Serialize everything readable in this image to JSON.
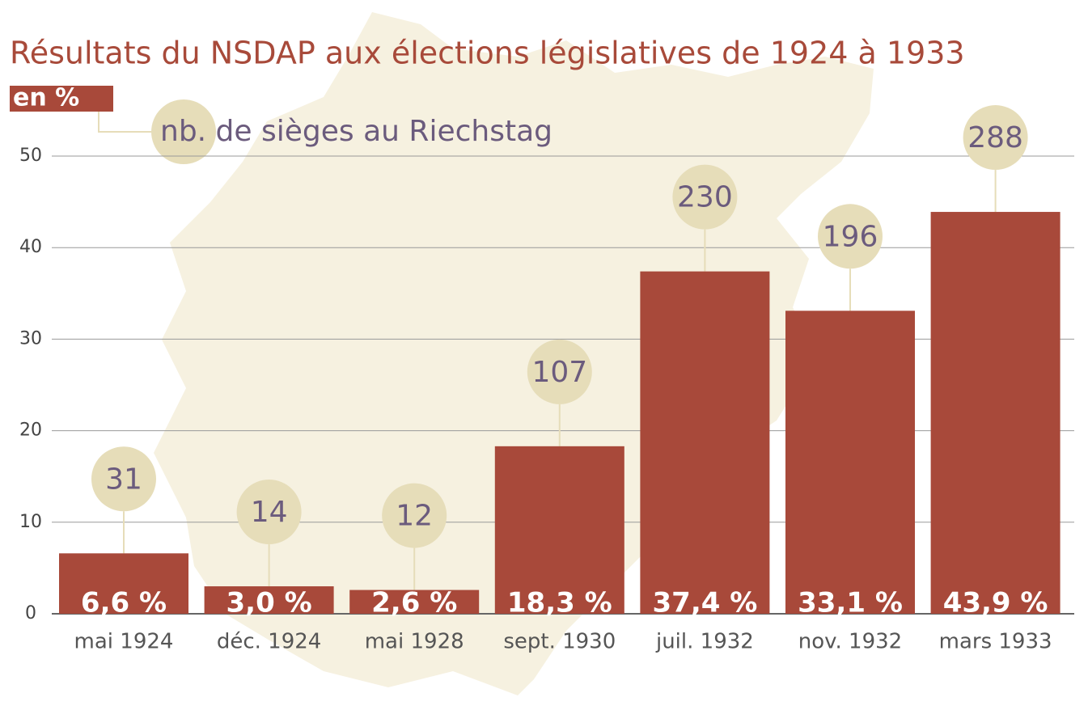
{
  "chart_data": {
    "type": "bar",
    "title": "Résultats du NSDAP aux élections législatives de 1924 à 1933",
    "y_label": "en %",
    "seats_label": "nb. de sièges au Riechstag",
    "categories": [
      "mai 1924",
      "déc. 1924",
      "mai 1928",
      "sept. 1930",
      "juil. 1932",
      "nov. 1932",
      "mars 1933"
    ],
    "values": [
      6.6,
      3.0,
      2.6,
      18.3,
      37.4,
      33.1,
      43.9
    ],
    "value_labels": [
      "6,6 %",
      "3,0 %",
      "2,6 %",
      "18,3 %",
      "37,4 %",
      "33,1 %",
      "43,9 %"
    ],
    "seats": [
      31,
      14,
      12,
      107,
      230,
      196,
      288
    ],
    "color": "#a8493a",
    "seat_color": "#e6ddb9",
    "ylim": [
      0,
      50
    ],
    "yticks": [
      0,
      10,
      20,
      30,
      40,
      50
    ],
    "grid": true
  }
}
